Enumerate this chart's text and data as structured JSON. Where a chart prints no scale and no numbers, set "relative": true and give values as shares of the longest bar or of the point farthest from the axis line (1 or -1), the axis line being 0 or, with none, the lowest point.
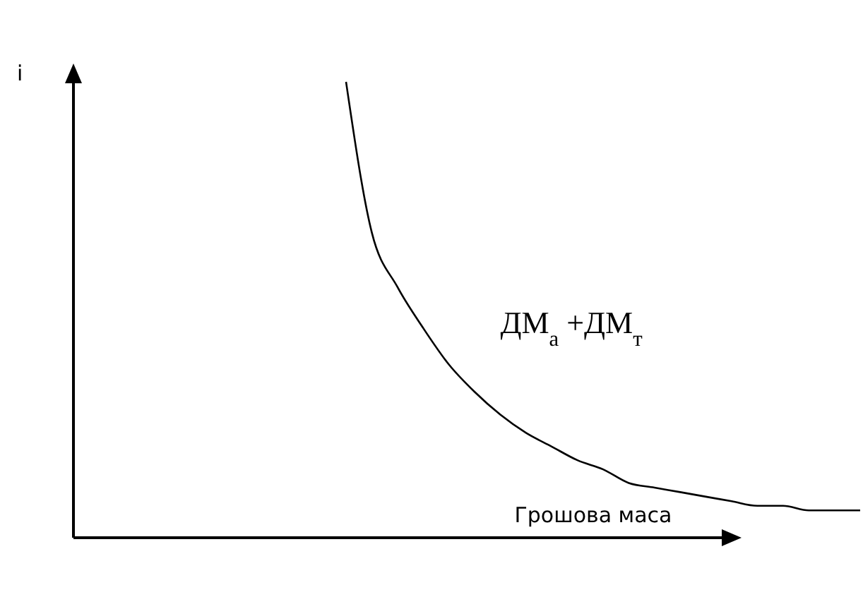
{
  "chart_data": {
    "type": "line",
    "relative": true,
    "xlabel": "Грошова маса",
    "annotations": [
      "i"
    ],
    "categories": [
      null,
      null,
      null,
      null,
      null,
      null,
      null,
      null,
      null,
      null,
      null,
      null,
      null,
      null,
      null,
      null,
      null,
      null,
      null,
      null,
      null
    ],
    "series": [
      {
        "name": "ДМ$_{а}$ +ДМ$_{т}$",
        "color": "#000000",
        "values": [
          1,
          0.67,
          0.55,
          0.46,
          0.38,
          0.32,
          0.27,
          0.23,
          0.2,
          0.17,
          0.15,
          0.12,
          0.11,
          0.1,
          0.09,
          0.08,
          0.07,
          0.07,
          0.06,
          0.06,
          0.06
        ]
      }
    ],
    "marker": "none",
    "line_style": "solid"
  }
}
